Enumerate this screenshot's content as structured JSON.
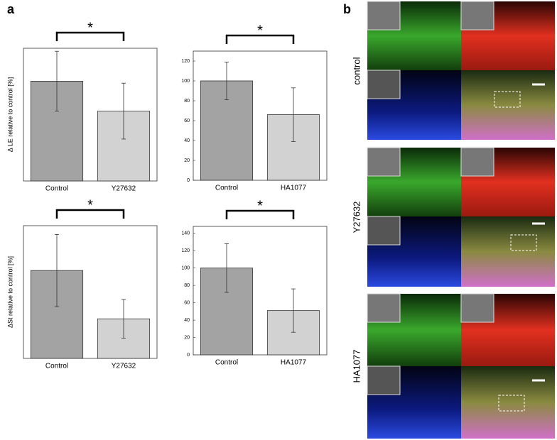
{
  "panel_labels": [
    "a",
    "b"
  ],
  "row_labels": [
    "control",
    "Y27632",
    "HA1077"
  ],
  "chart_data": [
    {
      "type": "bar",
      "ylabel": "Δ LE relative to control [%]",
      "categories": [
        "Control",
        "Y27632"
      ],
      "values": [
        100,
        70
      ],
      "errors": [
        30,
        28
      ],
      "colors": [
        "#a3a3a3",
        "#d2d2d2"
      ],
      "ylim": [
        0,
        133
      ],
      "annotation": "*"
    },
    {
      "type": "bar",
      "categories": [
        "Control",
        "HA1077"
      ],
      "values": [
        100,
        66
      ],
      "errors": [
        19,
        27
      ],
      "colors": [
        "#a3a3a3",
        "#d2d2d2"
      ],
      "ylim": [
        0,
        130
      ],
      "yticks": [
        0,
        20,
        40,
        60,
        80,
        100,
        120
      ],
      "annotation": "*"
    },
    {
      "type": "bar",
      "ylabel": "ΔSt relative to control [%]",
      "categories": [
        "Control",
        "Y27632"
      ],
      "values": [
        100,
        45
      ],
      "errors": [
        41,
        22
      ],
      "colors": [
        "#a3a3a3",
        "#d2d2d2"
      ],
      "ylim": [
        0,
        151
      ],
      "annotation": "*"
    },
    {
      "type": "bar",
      "categories": [
        "Control",
        "HA1077"
      ],
      "values": [
        100,
        51
      ],
      "errors": [
        28,
        25
      ],
      "colors": [
        "#a3a3a3",
        "#d2d2d2"
      ],
      "ylim": [
        0,
        148
      ],
      "yticks": [
        0,
        20,
        40,
        60,
        80,
        100,
        120,
        140
      ],
      "annotation": "*"
    }
  ]
}
